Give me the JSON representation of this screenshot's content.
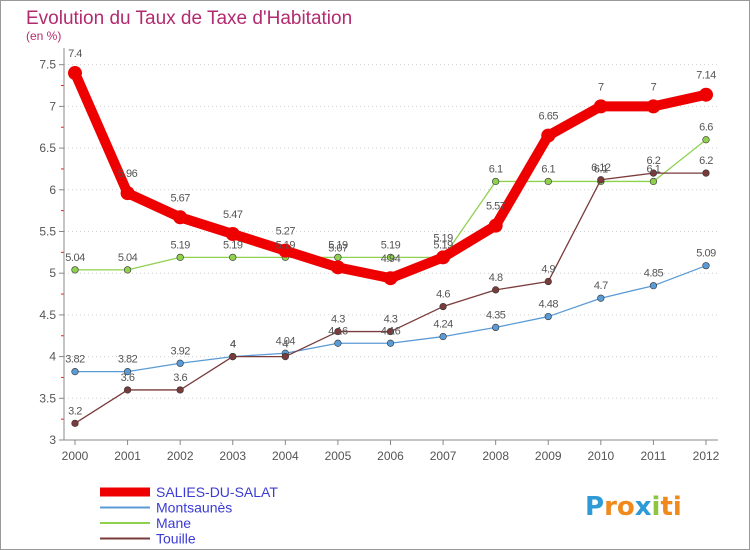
{
  "chart_data": {
    "type": "line",
    "title": "Evolution du Taux de Taxe d'Habitation",
    "subtitle": "(en %)",
    "xlabel": "",
    "ylabel": "",
    "x": [
      "2000",
      "2001",
      "2002",
      "2003",
      "2004",
      "2005",
      "2006",
      "2007",
      "2008",
      "2009",
      "2010",
      "2011",
      "2012"
    ],
    "ylim": [
      3,
      7.7
    ],
    "yticks": [
      3,
      3.5,
      4,
      4.5,
      5,
      5.5,
      6,
      6.5,
      7,
      7.5
    ],
    "ytick_labels": [
      "3",
      "3.5",
      "4",
      "4.5",
      "5",
      "5.5",
      "6",
      "6.5",
      "7",
      "7.5"
    ],
    "grid": "horizontal dotted",
    "legend_position": "bottom-left",
    "series": [
      {
        "name": "SALIES-DU-SALAT",
        "color": "#ee0000",
        "values": [
          7.4,
          5.96,
          5.67,
          5.47,
          5.27,
          5.07,
          4.94,
          5.19,
          5.57,
          6.65,
          7,
          7,
          7.14
        ],
        "labels": [
          "7.4",
          "5.96",
          "5.67",
          "5.47",
          "5.27",
          "5.07",
          "4.94",
          "5.19",
          "5.57",
          "6.65",
          "7",
          "7",
          "7.14"
        ]
      },
      {
        "name": "Montsaunès",
        "color": "#5b9bd5",
        "values": [
          3.82,
          3.82,
          3.92,
          4,
          4.04,
          4.16,
          4.16,
          4.24,
          4.35,
          4.48,
          4.7,
          4.85,
          5.09
        ],
        "labels": [
          "3.82",
          "3.82",
          "3.92",
          "4",
          "4.04",
          "4.16",
          "4.16",
          "4.24",
          "4.35",
          "4.48",
          "4.7",
          "4.85",
          "5.09"
        ]
      },
      {
        "name": "Mane",
        "color": "#8fd14f",
        "values": [
          5.04,
          5.04,
          5.19,
          5.19,
          5.19,
          5.19,
          5.19,
          5.19,
          6.1,
          6.1,
          6.1,
          6.1,
          6.6
        ],
        "labels": [
          "5.04",
          "5.04",
          "5.19",
          "5.19",
          "5.19",
          "5.19",
          "5.19",
          "5.19",
          "6.1",
          "6.1",
          "6.1",
          "6.1",
          "6.6"
        ]
      },
      {
        "name": "Touille",
        "color": "#7a3b3b",
        "values": [
          3.2,
          3.6,
          3.6,
          4,
          4,
          4.3,
          4.3,
          4.6,
          4.8,
          4.9,
          6.12,
          6.2,
          6.2
        ],
        "labels": [
          "3.2",
          "3.6",
          "3.6",
          "4",
          "4",
          "4.3",
          "4.3",
          "4.6",
          "4.8",
          "4.9",
          "6.12",
          "6.2",
          "6.2"
        ]
      }
    ]
  },
  "logo": {
    "letters": [
      "P",
      "r",
      "o",
      "x",
      "i",
      "t",
      "i"
    ],
    "colors": [
      "#2e9bd6",
      "#f08a1c",
      "#f08a1c",
      "#2e9bd6",
      "#8cc63e",
      "#f08a1c",
      "#f08a1c"
    ]
  }
}
